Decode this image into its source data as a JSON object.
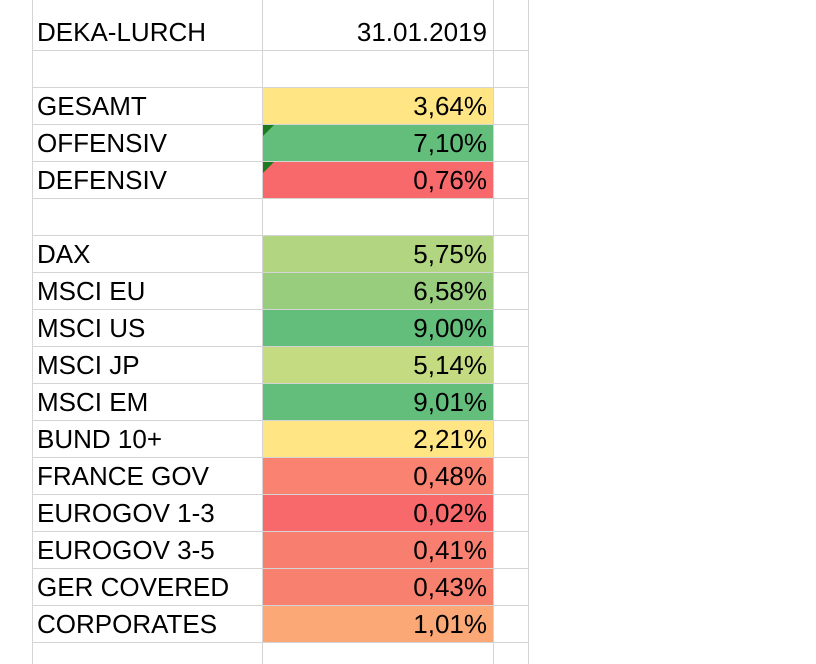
{
  "sheet": {
    "header": {
      "name": "DEKA-LURCH",
      "date": "31.01.2019"
    },
    "summary": [
      {
        "label": "GESAMT",
        "value": "3,64%",
        "fill": "#ffe584",
        "comment": false
      },
      {
        "label": "OFFENSIV",
        "value": "7,10%",
        "fill": "#63be7b",
        "comment": true
      },
      {
        "label": "DEFENSIV",
        "value": "0,76%",
        "fill": "#f8696b",
        "comment": true
      }
    ],
    "indices": [
      {
        "label": "DAX",
        "value": "5,75%",
        "fill": "#b1d580"
      },
      {
        "label": "MSCI EU",
        "value": "6,58%",
        "fill": "#98cd7e"
      },
      {
        "label": "MSCI US",
        "value": "9,00%",
        "fill": "#63be7b"
      },
      {
        "label": "MSCI JP",
        "value": "5,14%",
        "fill": "#c5db81"
      },
      {
        "label": "MSCI EM",
        "value": "9,01%",
        "fill": "#63be7b"
      },
      {
        "label": "BUND 10+",
        "value": "2,21%",
        "fill": "#ffe584"
      },
      {
        "label": "FRANCE GOV",
        "value": "0,48%",
        "fill": "#f98370"
      },
      {
        "label": "EUROGOV 1-3",
        "value": "0,02%",
        "fill": "#f8696b"
      },
      {
        "label": "EUROGOV 3-5",
        "value": "0,41%",
        "fill": "#f87f6f"
      },
      {
        "label": "GER COVERED",
        "value": "0,43%",
        "fill": "#f8806f"
      },
      {
        "label": "CORPORATES",
        "value": "1,01%",
        "fill": "#fba876"
      }
    ]
  }
}
